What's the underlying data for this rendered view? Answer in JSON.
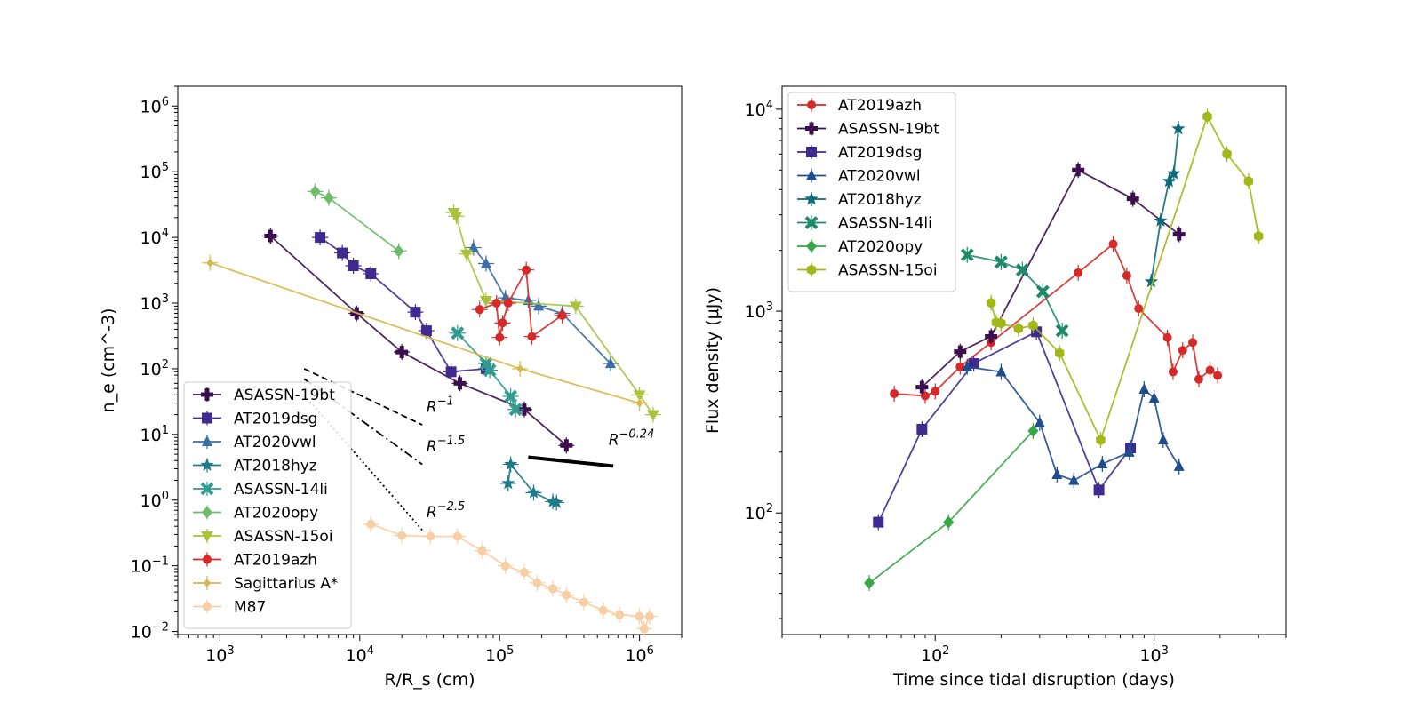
{
  "chart_data": [
    {
      "type": "scatter",
      "xscale": "log",
      "yscale": "log",
      "xlabel": "R/R_s (cm)",
      "ylabel": "n_e (cm^-3)",
      "xlim": [
        500,
        2000000
      ],
      "ylim": [
        0.009,
        2000000
      ],
      "xticks": [
        {
          "v": 1000,
          "e": "3"
        },
        {
          "v": 10000,
          "e": "4"
        },
        {
          "v": 100000,
          "e": "5"
        },
        {
          "v": 1000000,
          "e": "6"
        }
      ],
      "yticks": [
        {
          "v": 0.01,
          "e": "−2"
        },
        {
          "v": 0.1,
          "e": "−1"
        },
        {
          "v": 1,
          "e": "0"
        },
        {
          "v": 10,
          "e": "1"
        },
        {
          "v": 100,
          "e": "2"
        },
        {
          "v": 1000,
          "e": "3"
        },
        {
          "v": 10000,
          "e": "4"
        },
        {
          "v": 100000,
          "e": "5"
        },
        {
          "v": 1000000,
          "e": "6"
        }
      ],
      "legend_position": "lower-left",
      "series": [
        {
          "name": "ASASSN-19bt",
          "color": "#3b0f4f",
          "marker": "plus",
          "points": [
            [
              2300,
              10500
            ],
            [
              9500,
              700
            ],
            [
              20000,
              180
            ],
            [
              52000,
              60
            ],
            [
              150000,
              24
            ],
            [
              300000,
              6.8
            ]
          ]
        },
        {
          "name": "AT2019dsg",
          "color": "#3f2a8f",
          "marker": "square",
          "points": [
            [
              5200,
              10000
            ],
            [
              7500,
              5800
            ],
            [
              9000,
              3700
            ],
            [
              12000,
              2800
            ],
            [
              25000,
              730
            ],
            [
              30000,
              380
            ],
            [
              45000,
              90
            ],
            [
              80000,
              100
            ]
          ]
        },
        {
          "name": "AT2020vwl",
          "color": "#3a6ea5",
          "marker": "triangle",
          "points": [
            [
              65000,
              7000
            ],
            [
              80000,
              4000
            ],
            [
              110000,
              1200
            ],
            [
              160000,
              1100
            ],
            [
              190000,
              900
            ],
            [
              280000,
              700
            ],
            [
              620000,
              120
            ]
          ]
        },
        {
          "name": "AT2018hyz",
          "color": "#1f7a8c",
          "marker": "star",
          "points": [
            [
              115000,
              1.8
            ],
            [
              120000,
              3.5
            ],
            [
              175000,
              1.3
            ],
            [
              240000,
              0.95
            ],
            [
              255000,
              0.92
            ]
          ]
        },
        {
          "name": "ASASSN-14li",
          "color": "#2e9c8e",
          "marker": "x",
          "points": [
            [
              50000,
              350
            ],
            [
              80000,
              120
            ],
            [
              85000,
              95
            ],
            [
              120000,
              38
            ],
            [
              130000,
              24
            ]
          ]
        },
        {
          "name": "AT2020opy",
          "color": "#6dbb6b",
          "marker": "diamond",
          "points": [
            [
              4800,
              50000
            ],
            [
              6000,
              40000
            ],
            [
              19000,
              6200
            ]
          ]
        },
        {
          "name": "ASASSN-15oi",
          "color": "#a9c23f",
          "marker": "triangle-down",
          "points": [
            [
              47000,
              24000
            ],
            [
              49000,
              21000
            ],
            [
              58000,
              5600
            ],
            [
              80000,
              1100
            ],
            [
              350000,
              900
            ],
            [
              1000000,
              40
            ],
            [
              1250000,
              20
            ]
          ]
        },
        {
          "name": "AT2019azh",
          "color": "#d62a2a",
          "marker": "circle",
          "points": [
            [
              72000,
              800
            ],
            [
              95000,
              1000
            ],
            [
              100000,
              300
            ],
            [
              105000,
              500
            ],
            [
              115000,
              1000
            ],
            [
              155000,
              3200
            ],
            [
              170000,
              310
            ],
            [
              280000,
              650
            ]
          ]
        },
        {
          "name": "Sagittarius A*",
          "color": "#d8b84a",
          "marker": "diamond-small",
          "points": [
            [
              850,
              4100
            ],
            [
              140000,
              100
            ],
            [
              1000000,
              30
            ]
          ]
        },
        {
          "name": "M87",
          "color": "#f7cfa5",
          "marker": "circle",
          "points": [
            [
              12000,
              0.43
            ],
            [
              20000,
              0.29
            ],
            [
              32000,
              0.28
            ],
            [
              50000,
              0.28
            ],
            [
              75000,
              0.17
            ],
            [
              110000,
              0.1
            ],
            [
              150000,
              0.08
            ],
            [
              185000,
              0.055
            ],
            [
              240000,
              0.045
            ],
            [
              300000,
              0.036
            ],
            [
              400000,
              0.028
            ],
            [
              550000,
              0.021
            ],
            [
              720000,
              0.018
            ],
            [
              1000000,
              0.017
            ],
            [
              1080000,
              0.011
            ],
            [
              1180000,
              0.017
            ]
          ]
        }
      ],
      "annotations": [
        {
          "label": "R",
          "exp": "−1",
          "line": [
            [
              4000,
              100
            ],
            [
              28000,
              14
            ]
          ],
          "text_at": [
            30000,
            22
          ],
          "style": "dashed"
        },
        {
          "label": "R",
          "exp": "−1.5",
          "line": [
            [
              4000,
              70
            ],
            [
              28000,
              3.5
            ]
          ],
          "text_at": [
            30000,
            5.5
          ],
          "style": "dashdot"
        },
        {
          "label": "R",
          "exp": "−2.5",
          "line": [
            [
              4000,
              40
            ],
            [
              28000,
              0.35
            ]
          ],
          "text_at": [
            30000,
            0.55
          ],
          "style": "dotted"
        },
        {
          "label": "R",
          "exp": "−0.24",
          "line": [
            [
              160000,
              4.5
            ],
            [
              650000,
              3.3
            ]
          ],
          "text_at": [
            600000,
            7
          ],
          "style": "solid-thick"
        }
      ]
    },
    {
      "type": "line",
      "xscale": "log",
      "yscale": "log",
      "xlabel": "Time since tidal disruption (days)",
      "ylabel": "Flux density (μJy)",
      "xlim": [
        20,
        4000
      ],
      "ylim": [
        25,
        13000
      ],
      "xticks": [
        {
          "v": 100,
          "e": "2"
        },
        {
          "v": 1000,
          "e": "3"
        }
      ],
      "yticks": [
        {
          "v": 100,
          "e": "2"
        },
        {
          "v": 1000,
          "e": "3"
        },
        {
          "v": 10000,
          "e": "4"
        }
      ],
      "legend_position": "upper-left",
      "series": [
        {
          "name": "AT2019azh",
          "color": "#d62a2a",
          "marker": "circle",
          "points": [
            [
              65,
              390
            ],
            [
              90,
              380
            ],
            [
              100,
              400
            ],
            [
              130,
              530
            ],
            [
              180,
              700
            ],
            [
              450,
              1550
            ],
            [
              650,
              2150
            ],
            [
              750,
              1500
            ],
            [
              850,
              1030
            ],
            [
              1150,
              740
            ],
            [
              1220,
              500
            ],
            [
              1350,
              640
            ],
            [
              1500,
              700
            ],
            [
              1600,
              460
            ],
            [
              1800,
              510
            ],
            [
              1950,
              480
            ]
          ]
        },
        {
          "name": "ASASSN-19bt",
          "color": "#3b0f4f",
          "marker": "plus",
          "points": [
            [
              87,
              420
            ],
            [
              130,
              630
            ],
            [
              180,
              750
            ],
            [
              450,
              5000
            ],
            [
              800,
              3600
            ],
            [
              1300,
              2400
            ]
          ]
        },
        {
          "name": "AT2019dsg",
          "color": "#3f2a8f",
          "marker": "square",
          "points": [
            [
              55,
              90
            ],
            [
              87,
              260
            ],
            [
              150,
              550
            ],
            [
              290,
              790
            ],
            [
              560,
              130
            ],
            [
              780,
              210
            ]
          ]
        },
        {
          "name": "AT2020vwl",
          "color": "#1f4e8f",
          "marker": "triangle",
          "points": [
            [
              140,
              530
            ],
            [
              200,
              500
            ],
            [
              300,
              280
            ],
            [
              360,
              155
            ],
            [
              430,
              145
            ],
            [
              580,
              175
            ],
            [
              770,
              200
            ],
            [
              900,
              410
            ],
            [
              1000,
              370
            ],
            [
              1100,
              230
            ],
            [
              1300,
              170
            ]
          ]
        },
        {
          "name": "AT2018hyz",
          "color": "#0f6b7a",
          "marker": "star",
          "points": [
            [
              970,
              1400
            ],
            [
              1070,
              2800
            ],
            [
              1170,
              4400
            ],
            [
              1230,
              4800
            ],
            [
              1290,
              8000
            ]
          ]
        },
        {
          "name": "ASASSN-14li",
          "color": "#1f8a6a",
          "marker": "x",
          "points": [
            [
              140,
              1900
            ],
            [
              200,
              1750
            ],
            [
              250,
              1600
            ],
            [
              310,
              1250
            ],
            [
              380,
              800
            ]
          ]
        },
        {
          "name": "AT2020opy",
          "color": "#3aa64a",
          "marker": "diamond",
          "points": [
            [
              50,
              45
            ],
            [
              115,
              90
            ],
            [
              280,
              255
            ]
          ]
        },
        {
          "name": "ASASSN-15oi",
          "color": "#a2b818",
          "marker": "hexagon",
          "points": [
            [
              180,
              1100
            ],
            [
              190,
              880
            ],
            [
              200,
              870
            ],
            [
              240,
              820
            ],
            [
              280,
              850
            ],
            [
              370,
              620
            ],
            [
              570,
              230
            ],
            [
              1750,
              9200
            ],
            [
              2150,
              6000
            ],
            [
              2700,
              4400
            ],
            [
              3000,
              2350
            ]
          ]
        }
      ]
    }
  ]
}
